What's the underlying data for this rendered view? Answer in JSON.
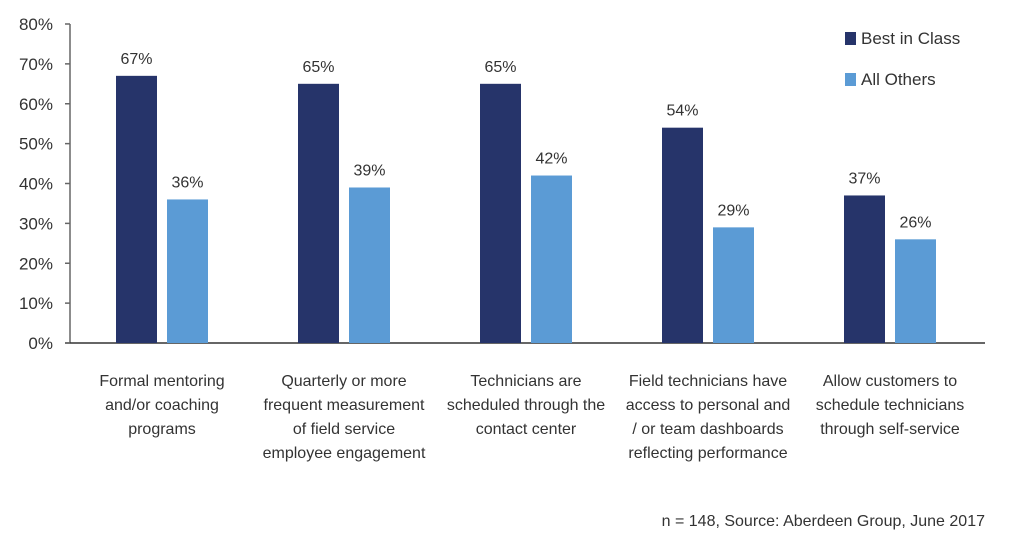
{
  "chart_data": {
    "type": "bar",
    "title": "",
    "xlabel": "",
    "ylabel": "",
    "ylim": [
      0,
      80
    ],
    "yticks": [
      "0%",
      "10%",
      "20%",
      "30%",
      "40%",
      "50%",
      "60%",
      "70%",
      "80%"
    ],
    "grid": false,
    "legend_position": "top-right",
    "categories": [
      [
        "Formal mentoring",
        "and/or coaching",
        "programs"
      ],
      [
        "Quarterly or more",
        "frequent measurement",
        "of field service",
        "employee engagement"
      ],
      [
        "Technicians are",
        "scheduled through the",
        "contact center"
      ],
      [
        "Field technicians have",
        "access to personal and",
        "/ or team dashboards",
        "reflecting performance"
      ],
      [
        "Allow customers to",
        "schedule technicians",
        "through self-service"
      ]
    ],
    "series": [
      {
        "name": "Best in Class",
        "color": "#26346a",
        "values": [
          67,
          65,
          65,
          54,
          37
        ],
        "labels": [
          "67%",
          "65%",
          "65%",
          "54%",
          "37%"
        ]
      },
      {
        "name": "All Others",
        "color": "#5b9bd5",
        "values": [
          36,
          39,
          42,
          29,
          26
        ],
        "labels": [
          "36%",
          "39%",
          "42%",
          "29%",
          "26%"
        ]
      }
    ],
    "footnote": "n = 148, Source: Aberdeen Group, June 2017"
  }
}
